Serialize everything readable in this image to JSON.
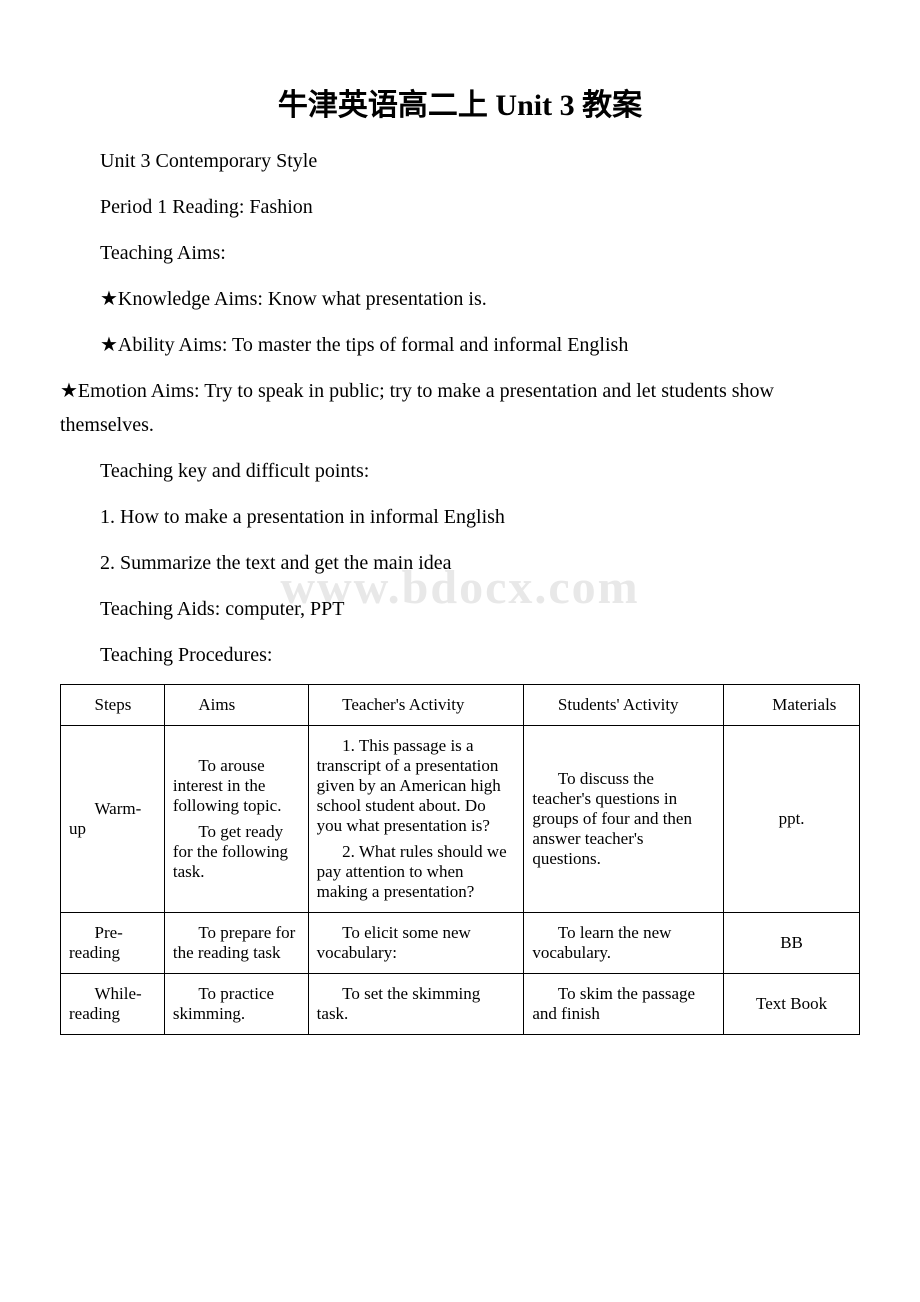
{
  "watermark": "www.bdocx.com",
  "title": "牛津英语高二上 Unit 3 教案",
  "paragraphs": [
    "Unit 3 Contemporary Style",
    "Period 1 Reading: Fashion",
    "Teaching Aims:",
    "★Knowledge Aims: Know what presentation is.",
    "★Ability Aims: To master the tips of formal and informal English",
    "★Emotion Aims: Try to speak in public; try to make a presentation and let students show themselves.",
    "Teaching key and difficult points:",
    "1. How to make a presentation in informal English",
    "2. Summarize the text and get the main idea",
    "Teaching Aids: computer, PPT",
    "Teaching Procedures:"
  ],
  "paragraphNoIndent": [
    false,
    false,
    false,
    false,
    false,
    true,
    false,
    false,
    false,
    false,
    false
  ],
  "table": {
    "columns": {
      "steps": "Steps",
      "aims": "Aims",
      "teacher": "Teacher's Activity",
      "students": "Students' Activity",
      "materials": "Materials"
    },
    "colWidths": [
      "13%",
      "18%",
      "27%",
      "25%",
      "17%"
    ],
    "rows": [
      {
        "steps": "Warm-up",
        "aims": [
          "To arouse interest in the following topic.",
          "To get ready for the following task."
        ],
        "teacher": [
          "1. This passage is a transcript of a presentation given by an American high school student about. Do you what presentation is?",
          "2. What rules should we pay attention to when making a presentation?"
        ],
        "students": [
          "To discuss the teacher's questions in groups of four and then answer teacher's questions."
        ],
        "materials": "ppt."
      },
      {
        "steps": "Pre-reading",
        "aims": [
          "To prepare for the reading task"
        ],
        "teacher": [
          "To elicit some new vocabulary:"
        ],
        "students": [
          "To learn the new vocabulary."
        ],
        "materials": "BB"
      },
      {
        "steps": "While-reading",
        "aims": [
          "To practice skimming."
        ],
        "teacher": [
          "To set the skimming task."
        ],
        "students": [
          "To skim the passage and finish"
        ],
        "materials": "Text Book"
      }
    ]
  }
}
